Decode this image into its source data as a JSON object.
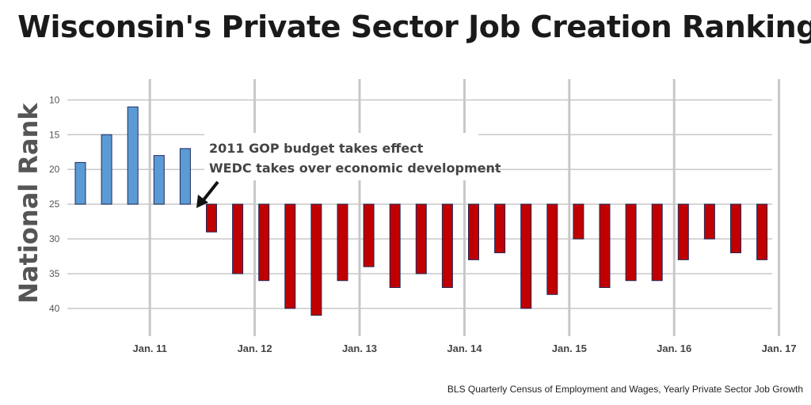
{
  "title": "Wisconsin's Private Sector Job Creation Ranking",
  "source": "BLS Quarterly Census of Employment and Wages, Yearly Private Sector Job Growth",
  "chart_data": {
    "type": "bar",
    "ylabel": "National Rank",
    "baseline": 25,
    "ylim": [
      7,
      44
    ],
    "y_inverted": true,
    "yticks": [
      10,
      15,
      20,
      25,
      30,
      35,
      40
    ],
    "xticks": [
      "Jan. 11",
      "Jan. 12",
      "Jan. 13",
      "Jan. 14",
      "Jan. 15",
      "Jan. 16",
      "Jan. 17"
    ],
    "grid": true,
    "colors": {
      "before": "#5b9bd5",
      "after": "#c00000",
      "outline": "#1f2a5a",
      "grid": "#c8c8c8"
    },
    "series": [
      {
        "values": [
          19,
          15,
          11,
          18,
          17
        ],
        "color": "before"
      },
      {
        "values": [
          29,
          35,
          36,
          40,
          41,
          36,
          34,
          37,
          35,
          37,
          33,
          32,
          40,
          38,
          30,
          37,
          36,
          36,
          33,
          30,
          32,
          33
        ],
        "color": "after"
      }
    ],
    "annotation": {
      "lines": [
        "2011 GOP budget takes effect",
        "WEDC takes over economic development"
      ]
    }
  }
}
